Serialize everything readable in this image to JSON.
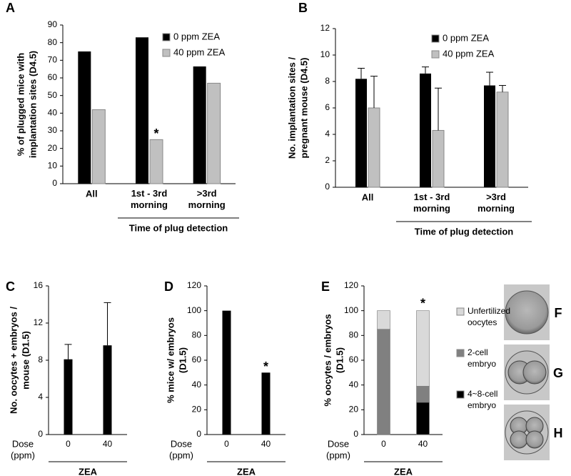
{
  "chart_data": [
    {
      "type": "bar",
      "panel": "A",
      "ylabel": [
        "% of plugged mice with",
        "implantation sites (D4.5)"
      ],
      "categories": [
        "All",
        "1st - 3rd morning",
        ">3rd morning"
      ],
      "xgroup": "Time of plug detection",
      "ylim": [
        0,
        90
      ],
      "yticks": [
        0,
        10,
        20,
        30,
        40,
        50,
        60,
        70,
        80,
        90
      ],
      "legend": "upper right",
      "series": [
        {
          "name": "0 ppm ZEA",
          "color": "#000000",
          "values": [
            75,
            83,
            66.5
          ]
        },
        {
          "name": "40 ppm ZEA",
          "color": "#c0c0c0",
          "values": [
            42,
            25,
            57
          ],
          "markers": [
            null,
            "*",
            null
          ]
        }
      ]
    },
    {
      "type": "bar",
      "panel": "B",
      "ylabel": [
        "No. implantation sites /",
        "pregnant mouse (D4.5)"
      ],
      "categories": [
        "All",
        "1st - 3rd morning",
        ">3rd morning"
      ],
      "xgroup": "Time of plug detection",
      "ylim": [
        0,
        12
      ],
      "yticks": [
        0,
        2,
        4,
        6,
        8,
        10,
        12
      ],
      "legend": "upper right",
      "series": [
        {
          "name": "0 ppm ZEA",
          "color": "#000000",
          "values": [
            8.2,
            8.6,
            7.7
          ],
          "errors": [
            0.8,
            0.5,
            1.0
          ]
        },
        {
          "name": "40 ppm ZEA",
          "color": "#c0c0c0",
          "values": [
            6.0,
            4.3,
            7.2
          ],
          "errors": [
            2.4,
            3.2,
            0.5
          ]
        }
      ]
    },
    {
      "type": "bar",
      "panel": "C",
      "ylabel": [
        "No. oocytes + embryos /",
        "mouse (D1.5)"
      ],
      "categories": [
        "0",
        "40"
      ],
      "xlabel": [
        "Dose",
        "(ppm)"
      ],
      "xgroup": "ZEA",
      "ylim": [
        0,
        16
      ],
      "yticks": [
        0,
        4,
        8,
        12,
        16
      ],
      "series": [
        {
          "color": "#000000",
          "values": [
            8.1,
            9.6
          ],
          "errors": [
            1.6,
            4.6
          ]
        }
      ]
    },
    {
      "type": "bar",
      "panel": "D",
      "ylabel": [
        "% mice w/ embryos",
        "(D1.5)"
      ],
      "categories": [
        "0",
        "40"
      ],
      "xlabel": [
        "Dose",
        "(ppm)"
      ],
      "xgroup": "ZEA",
      "ylim": [
        0,
        120
      ],
      "yticks": [
        0,
        20,
        40,
        60,
        80,
        100,
        120
      ],
      "series": [
        {
          "color": "#000000",
          "values": [
            100,
            50
          ],
          "markers": [
            null,
            "*"
          ]
        }
      ]
    },
    {
      "type": "stacked_bar",
      "panel": "E",
      "ylabel": [
        "% oocytes / embryos",
        "(D1.5)"
      ],
      "categories": [
        "0",
        "40"
      ],
      "xlabel": [
        "Dose",
        "(ppm)"
      ],
      "xgroup": "ZEA",
      "ylim": [
        0,
        120
      ],
      "yticks": [
        0,
        20,
        40,
        60,
        80,
        100,
        120
      ],
      "legend": "right",
      "series": [
        {
          "name": "4~8-cell embryo",
          "color": "#000000",
          "values": [
            0,
            26
          ]
        },
        {
          "name": "2-cell embryo",
          "color": "#808080",
          "values": [
            85,
            13
          ]
        },
        {
          "name": "Unfertilized oocytes",
          "color": "#d9d9d9",
          "values": [
            15,
            61
          ],
          "markers": [
            null,
            "*"
          ]
        }
      ]
    }
  ],
  "image_labels": [
    "F",
    "G",
    "H"
  ]
}
